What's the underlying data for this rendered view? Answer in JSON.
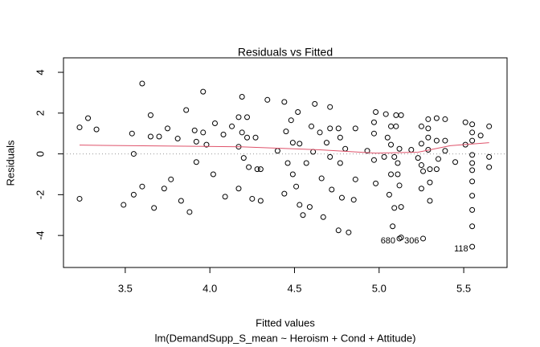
{
  "chart_data": {
    "type": "scatter",
    "title": "Residuals vs Fitted",
    "x_label": "Fitted values",
    "subtitle": "lm(DemandSupp_S_mean ~ Heroism + Cond + Attitude)",
    "y_label": "Residuals",
    "color": "#000000",
    "x": [
      3.23,
      3.23,
      3.28,
      3.33,
      3.49,
      3.54,
      3.55,
      3.55,
      3.6,
      3.6,
      3.65,
      3.65,
      3.67,
      3.7,
      3.73,
      3.75,
      3.77,
      3.81,
      3.83,
      3.86,
      3.88,
      3.91,
      3.92,
      3.92,
      3.96,
      3.96,
      3.98,
      4.02,
      4.03,
      4.08,
      4.09,
      4.13,
      4.17,
      4.17,
      4.17,
      4.19,
      4.19,
      4.2,
      4.22,
      4.22,
      4.23,
      4.25,
      4.27,
      4.28,
      4.3,
      4.3,
      4.34,
      4.4,
      4.44,
      4.44,
      4.45,
      4.46,
      4.48,
      4.49,
      4.49,
      4.51,
      4.52,
      4.53,
      4.53,
      4.55,
      4.57,
      4.59,
      4.6,
      4.61,
      4.62,
      4.65,
      4.66,
      4.67,
      4.69,
      4.71,
      4.71,
      4.71,
      4.72,
      4.76,
      4.76,
      4.77,
      4.77,
      4.78,
      4.8,
      4.82,
      4.85,
      4.86,
      4.86,
      4.93,
      4.97,
      4.97,
      4.97,
      4.98,
      4.98,
      5.03,
      5.04,
      5.05,
      5.06,
      5.07,
      5.07,
      5.07,
      5.08,
      5.09,
      5.09,
      5.1,
      5.1,
      5.11,
      5.11,
      5.12,
      5.12,
      5.12,
      5.13,
      5.13,
      5.13,
      5.19,
      5.23,
      5.25,
      5.25,
      5.25,
      5.25,
      5.26,
      5.26,
      5.29,
      5.29,
      5.29,
      5.29,
      5.3,
      5.3,
      5.3,
      5.34,
      5.34,
      5.34,
      5.35,
      5.39,
      5.39,
      5.39,
      5.45,
      5.51,
      5.51,
      5.55,
      5.55,
      5.55,
      5.55,
      5.55,
      5.55,
      5.55,
      5.55,
      5.55,
      5.55,
      5.55,
      5.6,
      5.65,
      5.65,
      5.65
    ],
    "values": [
      1.3,
      -2.2,
      1.75,
      1.2,
      -2.5,
      1.0,
      0,
      -2.0,
      3.45,
      -1.6,
      1.9,
      0.85,
      -2.65,
      0.85,
      -1.7,
      1.25,
      -1.25,
      0.75,
      -2.3,
      2.15,
      -2.85,
      1.15,
      0.6,
      -0.4,
      3.05,
      1.05,
      0.45,
      -1.0,
      1.5,
      0.95,
      -2.1,
      1.35,
      1.8,
      0.35,
      -1.7,
      2.8,
      1.05,
      -0.2,
      1.8,
      0.8,
      -0.65,
      -2.2,
      0.8,
      -0.75,
      -0.75,
      -2.3,
      2.65,
      0.15,
      2.55,
      -1.95,
      1.1,
      -0.45,
      1.65,
      0.55,
      -1.0,
      -1.6,
      2.05,
      0.5,
      -2.5,
      -3.0,
      -0.45,
      -2.6,
      1.35,
      0.1,
      2.45,
      1.05,
      -1.2,
      -3.1,
      0.55,
      2.3,
      1.25,
      -0.15,
      -1.75,
      1.25,
      -3.75,
      0.8,
      -0.45,
      -2.15,
      0.25,
      -3.85,
      -2.25,
      1.25,
      -1.25,
      0.15,
      1.55,
      1.0,
      -0.3,
      -1.45,
      2.05,
      -0.15,
      1.95,
      0.8,
      -2.0,
      1.35,
      0.45,
      -1.0,
      -3.55,
      -2.65,
      -0.15,
      1.9,
      1.35,
      -0.45,
      -1.0,
      -1.55,
      -4.15,
      0.25,
      -2.6,
      1.9,
      -4.1,
      0.2,
      -0.2,
      1.35,
      0.5,
      -0.55,
      -1.7,
      -0.85,
      -4.15,
      1.7,
      1.25,
      0.8,
      0.2,
      -0.75,
      -1.4,
      -2.3,
      1.75,
      0.65,
      -0.75,
      -0.25,
      1.7,
      0.65,
      0.15,
      -0.4,
      1.55,
      0.45,
      1.45,
      1.05,
      0.65,
      -0.05,
      -0.45,
      -0.8,
      -1.35,
      -2.05,
      -2.75,
      -3.55,
      -4.55,
      0.9,
      1.35,
      -0.15,
      -0.65
    ],
    "smooth": {
      "color": "#df536b",
      "x": [
        3.23,
        4.18,
        4.65,
        4.98,
        5.23,
        5.42,
        5.65
      ],
      "values": [
        0.43,
        0.35,
        0.2,
        0.04,
        0.08,
        0.4,
        0.55
      ]
    },
    "hline": 0,
    "point_labels": [
      {
        "label": "680",
        "x": 5.12,
        "y": -4.15
      },
      {
        "label": "306",
        "x": 5.26,
        "y": -4.15
      },
      {
        "label": "118",
        "x": 5.55,
        "y": -4.55
      }
    ],
    "xlim": [
      3.135,
      5.756
    ],
    "ylim": [
      -5.57,
      4.71
    ],
    "xticks": [
      3.5,
      {
        "value": 4,
        "label": "4.0"
      },
      4.5,
      {
        "value": 5,
        "label": "5.0"
      },
      5.5
    ],
    "yticks": [
      -4,
      -2,
      0,
      2,
      4
    ]
  }
}
